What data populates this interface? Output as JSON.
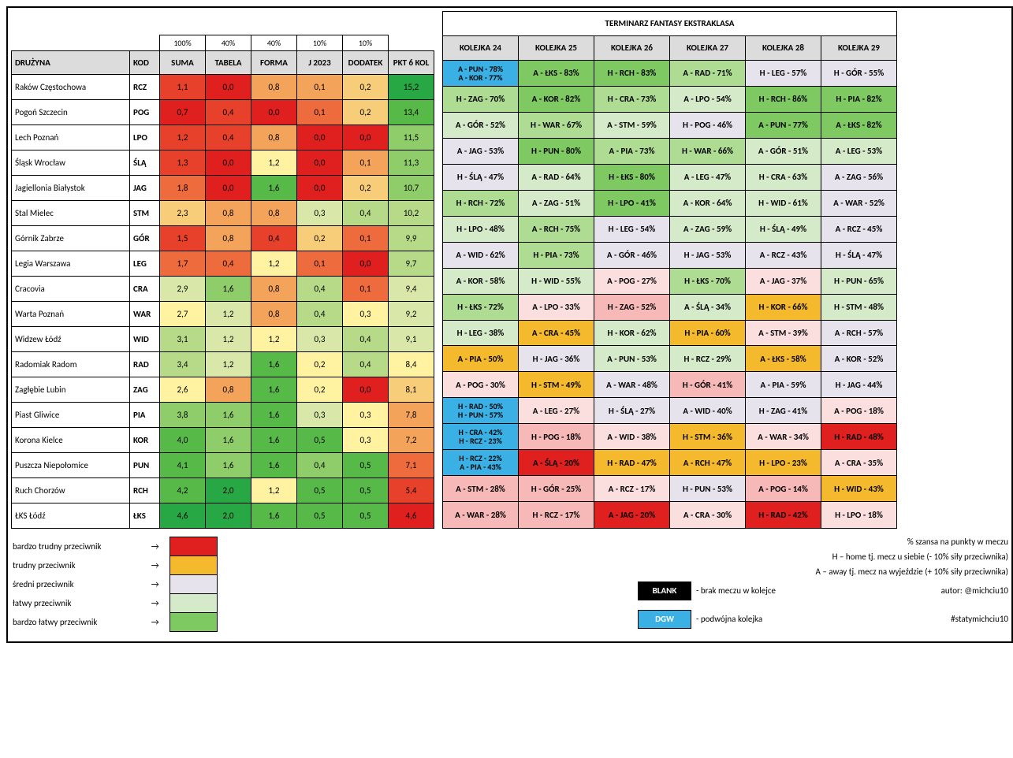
{
  "palette": {
    "hdr": "#dcdcdc",
    "r5": "#e01f1f",
    "r4": "#e8412b",
    "r3": "#ee6b3e",
    "r2": "#f4a35a",
    "r1": "#f8cd7a",
    "y": "#fff2a0",
    "g1": "#d9e8a8",
    "g2": "#b6da88",
    "g3": "#8fcc6a",
    "g4": "#57b948",
    "g5": "#28a745",
    "grey": "#e6e3ec",
    "pink2": "#f7b8b8",
    "pink1": "#fbdede",
    "lgreen1": "#d4eac8",
    "lgreen2": "#aedc93",
    "lgreen3": "#7ec962",
    "blue": "#3bb0e5",
    "amber": "#f5b92e",
    "black": "#000000"
  },
  "percent_headers": [
    "100%",
    "40%",
    "40%",
    "10%",
    "10%",
    ""
  ],
  "left_headers": [
    "DRUŻYNA",
    "KOD",
    "SUMA",
    "TABELA",
    "FORMA",
    "J 2023",
    "DODATEK",
    "PKT 6 KOL"
  ],
  "fixture_title": "TERMINARZ FANTASY EKSTRAKLASA",
  "fixture_headers": [
    "KOLEJKA 24",
    "KOLEJKA 25",
    "KOLEJKA 26",
    "KOLEJKA 27",
    "KOLEJKA 28",
    "KOLEJKA 29"
  ],
  "rows": [
    {
      "team": "Raków Częstochowa",
      "kod": "RCZ",
      "vals": [
        [
          "1,1",
          "r4"
        ],
        [
          "0,0",
          "r5"
        ],
        [
          "0,8",
          "r2"
        ],
        [
          "0,1",
          "r2"
        ],
        [
          "0,2",
          "r1"
        ],
        [
          "15,2",
          "g5"
        ]
      ],
      "fix": [
        [
          "A - PUN - 78%\nA - KOR - 77%",
          "blue"
        ],
        [
          "A - ŁKS - 83%",
          "lgreen3"
        ],
        [
          "H - RCH - 83%",
          "lgreen3"
        ],
        [
          "A - RAD - 71%",
          "lgreen2"
        ],
        [
          "H - LEG - 57%",
          "grey"
        ],
        [
          "H - GÓR - 55%",
          "grey"
        ]
      ]
    },
    {
      "team": "Pogoń Szczecin",
      "kod": "POG",
      "vals": [
        [
          "0,7",
          "r5"
        ],
        [
          "0,4",
          "r4"
        ],
        [
          "0,0",
          "r5"
        ],
        [
          "0,1",
          "r3"
        ],
        [
          "0,2",
          "r1"
        ],
        [
          "13,4",
          "g4"
        ]
      ],
      "fix": [
        [
          "H - ZAG - 70%",
          "lgreen2"
        ],
        [
          "A - KOR - 82%",
          "lgreen3"
        ],
        [
          "H - CRA - 73%",
          "lgreen2"
        ],
        [
          "A - LPO - 54%",
          "lgreen1"
        ],
        [
          "H - RCH - 86%",
          "lgreen3"
        ],
        [
          "H - PIA - 82%",
          "lgreen3"
        ]
      ]
    },
    {
      "team": "Lech Poznań",
      "kod": "LPO",
      "vals": [
        [
          "1,2",
          "r4"
        ],
        [
          "0,4",
          "r4"
        ],
        [
          "0,8",
          "r2"
        ],
        [
          "0,0",
          "r5"
        ],
        [
          "0,0",
          "r5"
        ],
        [
          "11,5",
          "g3"
        ]
      ],
      "fix": [
        [
          "A - GÓR - 52%",
          "lgreen1"
        ],
        [
          "H - WAR - 67%",
          "lgreen2"
        ],
        [
          "A - STM - 59%",
          "lgreen1"
        ],
        [
          "H - POG - 46%",
          "grey"
        ],
        [
          "A - PUN - 77%",
          "lgreen3"
        ],
        [
          "A - ŁKS - 82%",
          "lgreen3"
        ]
      ]
    },
    {
      "team": "Śląsk Wrocław",
      "kod": "ŚLĄ",
      "vals": [
        [
          "1,3",
          "r4"
        ],
        [
          "0,0",
          "r5"
        ],
        [
          "1,2",
          "y"
        ],
        [
          "0,0",
          "r5"
        ],
        [
          "0,1",
          "r2"
        ],
        [
          "11,3",
          "g3"
        ]
      ],
      "fix": [
        [
          "A - JAG - 53%",
          "grey"
        ],
        [
          "H - PUN - 80%",
          "lgreen3"
        ],
        [
          "A - PIA - 73%",
          "lgreen2"
        ],
        [
          "H - WAR - 66%",
          "lgreen2"
        ],
        [
          "A - GÓR - 51%",
          "lgreen1"
        ],
        [
          "A - LEG - 53%",
          "lgreen1"
        ]
      ]
    },
    {
      "team": "Jagiellonia Białystok",
      "kod": "JAG",
      "vals": [
        [
          "1,8",
          "r3"
        ],
        [
          "0,0",
          "r5"
        ],
        [
          "1,6",
          "g4"
        ],
        [
          "0,0",
          "r5"
        ],
        [
          "0,2",
          "r1"
        ],
        [
          "10,7",
          "g3"
        ]
      ],
      "fix": [
        [
          "H - ŚLĄ - 47%",
          "grey"
        ],
        [
          "A - RAD - 64%",
          "lgreen1"
        ],
        [
          "H - ŁKS - 80%",
          "lgreen3"
        ],
        [
          "A - LEG - 47%",
          "lgreen1"
        ],
        [
          "H - CRA - 63%",
          "lgreen1"
        ],
        [
          "A - ZAG - 56%",
          "grey"
        ]
      ]
    },
    {
      "team": "Stal Mielec",
      "kod": "STM",
      "vals": [
        [
          "2,3",
          "r1"
        ],
        [
          "0,8",
          "r2"
        ],
        [
          "0,8",
          "r2"
        ],
        [
          "0,3",
          "g1"
        ],
        [
          "0,4",
          "g2"
        ],
        [
          "10,2",
          "g2"
        ]
      ],
      "fix": [
        [
          "H - RCH - 72%",
          "lgreen2"
        ],
        [
          "A - ZAG - 51%",
          "lgreen1"
        ],
        [
          "H - LPO - 41%",
          "lgreen3"
        ],
        [
          "A - KOR - 64%",
          "lgreen1"
        ],
        [
          "H - WID - 61%",
          "lgreen1"
        ],
        [
          "A - WAR - 52%",
          "grey"
        ]
      ]
    },
    {
      "team": "Górnik Zabrze",
      "kod": "GÓR",
      "vals": [
        [
          "1,5",
          "r4"
        ],
        [
          "0,8",
          "r2"
        ],
        [
          "0,4",
          "r4"
        ],
        [
          "0,2",
          "r1"
        ],
        [
          "0,1",
          "r3"
        ],
        [
          "9,9",
          "g2"
        ]
      ],
      "fix": [
        [
          "H - LPO - 48%",
          "lgreen1"
        ],
        [
          "A - RCH - 75%",
          "lgreen2"
        ],
        [
          "H - LEG - 54%",
          "grey"
        ],
        [
          "A - ZAG - 59%",
          "lgreen1"
        ],
        [
          "H - ŚLĄ - 49%",
          "lgreen1"
        ],
        [
          "A - RCZ - 45%",
          "grey"
        ]
      ]
    },
    {
      "team": "Legia Warszawa",
      "kod": "LEG",
      "vals": [
        [
          "1,7",
          "r3"
        ],
        [
          "0,4",
          "r3"
        ],
        [
          "1,2",
          "y"
        ],
        [
          "0,1",
          "r3"
        ],
        [
          "0,0",
          "r5"
        ],
        [
          "9,7",
          "g2"
        ]
      ],
      "fix": [
        [
          "A - WID - 62%",
          "grey"
        ],
        [
          "H - PIA - 73%",
          "lgreen2"
        ],
        [
          "A - GÓR - 46%",
          "grey"
        ],
        [
          "H - JAG - 53%",
          "grey"
        ],
        [
          "A - RCZ - 43%",
          "grey"
        ],
        [
          "H - ŚLĄ - 47%",
          "grey"
        ]
      ]
    },
    {
      "team": "Cracovia",
      "kod": "CRA",
      "vals": [
        [
          "2,9",
          "g1"
        ],
        [
          "1,6",
          "g3"
        ],
        [
          "0,8",
          "r2"
        ],
        [
          "0,4",
          "g2"
        ],
        [
          "0,1",
          "r3"
        ],
        [
          "9,4",
          "g1"
        ]
      ],
      "fix": [
        [
          "A - KOR - 58%",
          "lgreen1"
        ],
        [
          "H - WID - 55%",
          "lgreen1"
        ],
        [
          "A - POG - 27%",
          "pink1"
        ],
        [
          "H - ŁKS - 70%",
          "lgreen2"
        ],
        [
          "A - JAG - 37%",
          "pink1"
        ],
        [
          "H - PUN - 65%",
          "lgreen1"
        ]
      ]
    },
    {
      "team": "Warta Poznań",
      "kod": "WAR",
      "vals": [
        [
          "2,7",
          "y"
        ],
        [
          "1,2",
          "g1"
        ],
        [
          "0,8",
          "r2"
        ],
        [
          "0,4",
          "g2"
        ],
        [
          "0,3",
          "y"
        ],
        [
          "9,2",
          "g1"
        ]
      ],
      "fix": [
        [
          "H - ŁKS - 72%",
          "lgreen2"
        ],
        [
          "A - LPO - 33%",
          "pink1"
        ],
        [
          "H - ZAG - 52%",
          "pink2"
        ],
        [
          "A - ŚLĄ - 34%",
          "lgreen1"
        ],
        [
          "H - KOR - 66%",
          "amber"
        ],
        [
          "H - STM - 48%",
          "lgreen1"
        ]
      ]
    },
    {
      "team": "Widzew Łódź",
      "kod": "WID",
      "vals": [
        [
          "3,1",
          "g2"
        ],
        [
          "1,2",
          "g1"
        ],
        [
          "1,2",
          "y"
        ],
        [
          "0,3",
          "g1"
        ],
        [
          "0,4",
          "g2"
        ],
        [
          "9,1",
          "g1"
        ]
      ],
      "fix": [
        [
          "H - LEG - 38%",
          "lgreen1"
        ],
        [
          "A - CRA - 45%",
          "amber"
        ],
        [
          "H - KOR - 62%",
          "lgreen1"
        ],
        [
          "H - PIA - 60%",
          "amber"
        ],
        [
          "A - STM - 39%",
          "pink1"
        ],
        [
          "A - RCH - 57%",
          "grey"
        ]
      ]
    },
    {
      "team": "Radomiak Radom",
      "kod": "RAD",
      "vals": [
        [
          "3,4",
          "g2"
        ],
        [
          "1,2",
          "g1"
        ],
        [
          "1,6",
          "g4"
        ],
        [
          "0,2",
          "y"
        ],
        [
          "0,4",
          "g2"
        ],
        [
          "8,4",
          "y"
        ]
      ],
      "fix": [
        [
          "A - PIA - 50%",
          "amber"
        ],
        [
          "H - JAG - 36%",
          "grey"
        ],
        [
          "A - PUN - 53%",
          "lgreen1"
        ],
        [
          "H - RCZ - 29%",
          "lgreen1"
        ],
        [
          "A - ŁKS - 58%",
          "amber"
        ],
        [
          "A - KOR - 52%",
          "grey"
        ]
      ]
    },
    {
      "team": "Zagłębie Lubin",
      "kod": "ZAG",
      "vals": [
        [
          "2,6",
          "y"
        ],
        [
          "0,8",
          "r2"
        ],
        [
          "1,6",
          "g4"
        ],
        [
          "0,2",
          "y"
        ],
        [
          "0,0",
          "r5"
        ],
        [
          "8,1",
          "r1"
        ]
      ],
      "fix": [
        [
          "A - POG - 30%",
          "pink1"
        ],
        [
          "H - STM - 49%",
          "amber"
        ],
        [
          "A - WAR - 48%",
          "grey"
        ],
        [
          "H - GÓR - 41%",
          "pink2"
        ],
        [
          "A - PIA - 59%",
          "grey"
        ],
        [
          "H - JAG - 44%",
          "grey"
        ]
      ]
    },
    {
      "team": "Piast Gliwice",
      "kod": "PIA",
      "vals": [
        [
          "3,8",
          "g3"
        ],
        [
          "1,6",
          "g3"
        ],
        [
          "1,6",
          "g4"
        ],
        [
          "0,3",
          "g1"
        ],
        [
          "0,3",
          "y"
        ],
        [
          "7,8",
          "r2"
        ]
      ],
      "fix": [
        [
          "H - RAD - 50%\nH - PUN - 57%",
          "blue"
        ],
        [
          "A - LEG - 27%",
          "pink1"
        ],
        [
          "H - ŚLĄ - 27%",
          "grey"
        ],
        [
          "A - WID - 40%",
          "grey"
        ],
        [
          "H - ZAG - 41%",
          "grey"
        ],
        [
          "A - POG - 18%",
          "pink1"
        ]
      ]
    },
    {
      "team": "Korona Kielce",
      "kod": "KOR",
      "vals": [
        [
          "4,0",
          "g4"
        ],
        [
          "1,6",
          "g3"
        ],
        [
          "1,6",
          "g4"
        ],
        [
          "0,5",
          "g4"
        ],
        [
          "0,3",
          "y"
        ],
        [
          "7,2",
          "r2"
        ]
      ],
      "fix": [
        [
          "H - CRA - 42%\nH - RCZ - 23%",
          "blue"
        ],
        [
          "H - POG - 18%",
          "pink2"
        ],
        [
          "A - WID - 38%",
          "pink1"
        ],
        [
          "H - STM - 36%",
          "amber"
        ],
        [
          "A - WAR - 34%",
          "pink1"
        ],
        [
          "H - RAD - 48%",
          "r5"
        ]
      ]
    },
    {
      "team": "Puszcza Niepołomice",
      "kod": "PUN",
      "vals": [
        [
          "4,1",
          "g4"
        ],
        [
          "1,6",
          "g3"
        ],
        [
          "1,6",
          "g4"
        ],
        [
          "0,4",
          "g3"
        ],
        [
          "0,5",
          "g4"
        ],
        [
          "7,1",
          "r3"
        ]
      ],
      "fix": [
        [
          "H - RCZ - 22%\nA - PIA - 43%",
          "blue"
        ],
        [
          "A - ŚLĄ - 20%",
          "r5"
        ],
        [
          "H - RAD - 47%",
          "amber"
        ],
        [
          "A - RCH - 47%",
          "amber"
        ],
        [
          "H - LPO - 23%",
          "amber"
        ],
        [
          "A - CRA - 35%",
          "pink1"
        ]
      ]
    },
    {
      "team": "Ruch Chorzów",
      "kod": "RCH",
      "vals": [
        [
          "4,2",
          "g4"
        ],
        [
          "2,0",
          "g5"
        ],
        [
          "1,2",
          "y"
        ],
        [
          "0,5",
          "g4"
        ],
        [
          "0,5",
          "g4"
        ],
        [
          "5,4",
          "r4"
        ]
      ],
      "fix": [
        [
          "A - STM - 28%",
          "pink2"
        ],
        [
          "H - GÓR - 25%",
          "pink2"
        ],
        [
          "A - RCZ - 17%",
          "pink1"
        ],
        [
          "H - PUN - 53%",
          "grey"
        ],
        [
          "A - POG - 14%",
          "pink2"
        ],
        [
          "H - WID - 43%",
          "amber"
        ]
      ]
    },
    {
      "team": "ŁKS Łódź",
      "kod": "ŁKS",
      "vals": [
        [
          "4,6",
          "g5"
        ],
        [
          "2,0",
          "g5"
        ],
        [
          "1,6",
          "g4"
        ],
        [
          "0,5",
          "g4"
        ],
        [
          "0,5",
          "g4"
        ],
        [
          "4,6",
          "r5"
        ]
      ],
      "fix": [
        [
          "A - WAR - 28%",
          "pink2"
        ],
        [
          "H - RCZ - 17%",
          "pink2"
        ],
        [
          "A - JAG - 20%",
          "r5"
        ],
        [
          "A - CRA - 30%",
          "pink1"
        ],
        [
          "H - RAD - 42%",
          "r5"
        ],
        [
          "H - LPO - 18%",
          "pink1"
        ]
      ]
    }
  ],
  "legend_rows": [
    [
      "bardzo trudny przeciwnik",
      "r5"
    ],
    [
      "trudny przeciwnik",
      "amber"
    ],
    [
      "średni przeciwnik",
      "grey"
    ],
    [
      "łatwy przeciwnik",
      "lgreen1"
    ],
    [
      "bardzo łatwy przeciwnik",
      "lgreen3"
    ]
  ],
  "legend_right": [
    "% szansa na punkty w meczu",
    "H – home tj. mecz u siebie (- 10% siły przeciwnika)",
    "A – away tj. mecz na wyjeździe (+ 10% siły przeciwnika)"
  ],
  "key_boxes": [
    {
      "label": "BLANK",
      "color": "black",
      "desc": "- brak meczu w kolejce",
      "tail": "autor: @michciu10"
    },
    {
      "label": "DGW",
      "color": "blue",
      "desc": "- podwójna kolejka",
      "tail": "#statymichciu10"
    }
  ]
}
